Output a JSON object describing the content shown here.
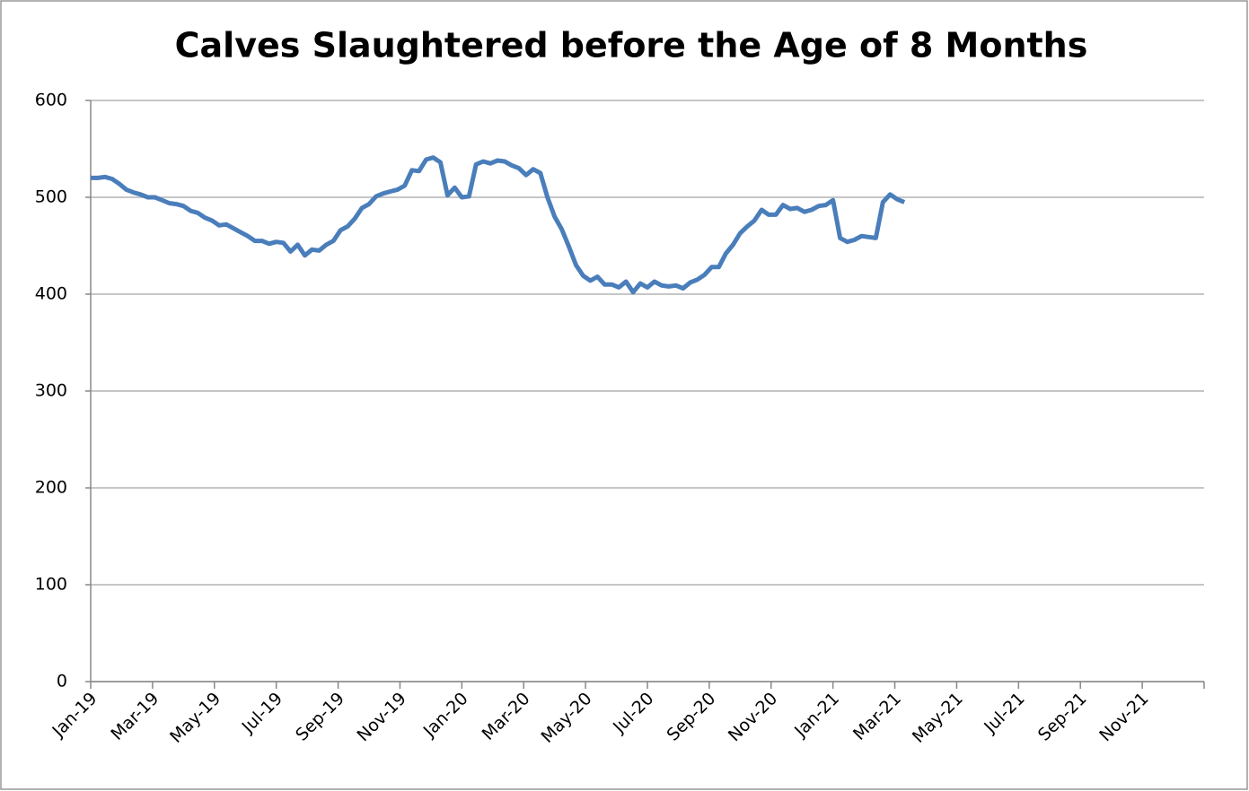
{
  "chart_data": {
    "type": "line",
    "title": "Calves Slaughtered before the Age of 8 Months",
    "xticks": [
      "Jan-19",
      "Mar-19",
      "May-19",
      "Jul-19",
      "Sep-19",
      "Nov-19",
      "Jan-20",
      "Mar-20",
      "May-20",
      "Jul-20",
      "Sep-20",
      "Nov-20",
      "Jan-21",
      "Mar-21",
      "May-21",
      "Jul-21",
      "Sep-21",
      "Nov-21"
    ],
    "series": [
      {
        "color": "#4a7ebb",
        "values": [
          520,
          520,
          521,
          519,
          514,
          508,
          505,
          503,
          500,
          500,
          497,
          494,
          493,
          491,
          486,
          484,
          479,
          476,
          471,
          472,
          468,
          464,
          460,
          455,
          455,
          452,
          454,
          453,
          444,
          451,
          440,
          446,
          445,
          451,
          455,
          466,
          470,
          478,
          489,
          493,
          501,
          504,
          506,
          508,
          512,
          528,
          527,
          539,
          541,
          536,
          502,
          510,
          500,
          501,
          534,
          537,
          535,
          538,
          537,
          533,
          530,
          523,
          529,
          525,
          500,
          480,
          467,
          449,
          430,
          419,
          414,
          418,
          410,
          410,
          407,
          413,
          402,
          411,
          407,
          413,
          409,
          408,
          409,
          406,
          412,
          415,
          420,
          428,
          428,
          442,
          451,
          463,
          470,
          476,
          487,
          482,
          482,
          492,
          488,
          489,
          485,
          487,
          491,
          492,
          497,
          458,
          454,
          456,
          460,
          459,
          458,
          495,
          503,
          498,
          495
        ]
      }
    ],
    "ylim": [
      0,
      600
    ],
    "yticks": [
      0,
      100,
      200,
      300,
      400,
      500,
      600
    ],
    "grid": true
  }
}
